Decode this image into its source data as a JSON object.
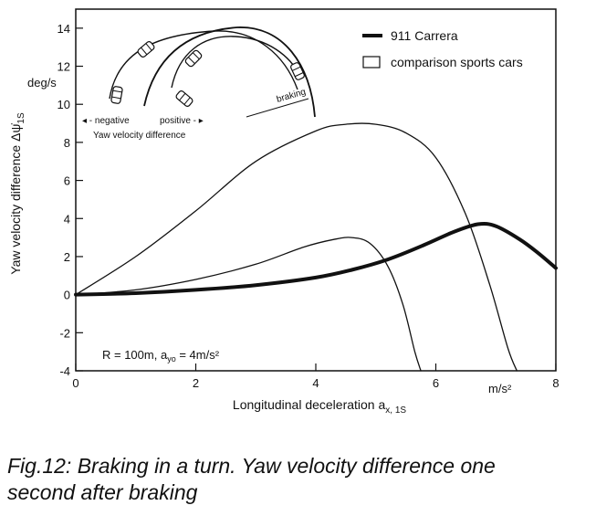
{
  "chart_data": {
    "type": "line",
    "xlabel": "Longitudinal deceleration a",
    "xlabel_sub": "x, 1S",
    "x_unit": "m/s²",
    "ylabel": "Yaw velocity difference Δψ̇",
    "ylabel_sub": "1S",
    "y_unit": "deg/s",
    "xlim": [
      0,
      8
    ],
    "ylim": [
      -4,
      15
    ],
    "x_ticks": [
      "0",
      "2",
      "4",
      "6",
      "8"
    ],
    "y_ticks": [
      "-4",
      "-2",
      "0",
      "2",
      "4",
      "6",
      "8",
      "10",
      "12",
      "14"
    ],
    "grid": false,
    "legend_position": "top-right",
    "legend": [
      {
        "label": "911 Carrera",
        "style": "thick line"
      },
      {
        "label": "comparison sports cars",
        "style": "open box"
      }
    ],
    "annotation": "R = 100m,  a",
    "annotation_sub": "yo",
    "annotation_tail": " = 4m/s²",
    "inset": {
      "negative_label": "negative",
      "positive_label": "positive",
      "yaw_label": "Yaw velocity difference",
      "braking_label": "braking"
    },
    "series": [
      {
        "name": "911 Carrera",
        "x": [
          0,
          1,
          2,
          3,
          4,
          4.6,
          5.2,
          5.8,
          6.3,
          6.7,
          7.0,
          7.4,
          7.7,
          8.0
        ],
        "y": [
          0,
          0.08,
          0.25,
          0.5,
          0.9,
          1.3,
          1.85,
          2.6,
          3.3,
          3.7,
          3.6,
          2.9,
          2.2,
          1.4
        ]
      },
      {
        "name": "comparison sports cars",
        "x": [
          0,
          1,
          2,
          3,
          3.8,
          4.3,
          4.6,
          4.9,
          5.2,
          5.45,
          5.65,
          5.75
        ],
        "y": [
          0,
          0.25,
          0.8,
          1.6,
          2.5,
          2.9,
          3.0,
          2.7,
          1.5,
          -0.5,
          -3.0,
          -4.0
        ]
      },
      {
        "name": "comparison sports cars",
        "x": [
          0,
          1,
          2,
          3,
          4,
          4.5,
          5,
          5.5,
          6,
          6.5,
          6.9,
          7.2,
          7.35
        ],
        "y": [
          0,
          2,
          4.4,
          7,
          8.6,
          8.95,
          8.95,
          8.5,
          7.2,
          4.2,
          0.5,
          -2.8,
          -4.0
        ]
      }
    ]
  },
  "caption": {
    "line1": "Fig.12: Braking in a turn. Yaw velocity difference one",
    "line2": "second after braking"
  }
}
